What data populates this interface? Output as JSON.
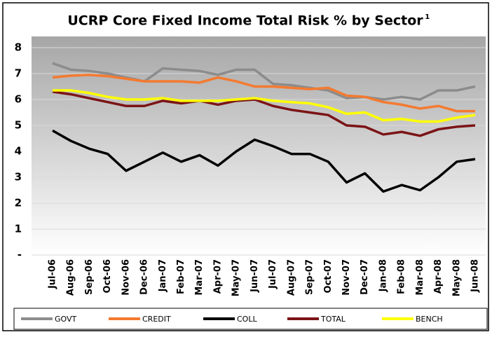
{
  "chart_data": {
    "type": "line",
    "title": "UCRP Core Fixed Income Total Risk % by Sector",
    "title_footnote": "1",
    "categories": [
      "Jul-06",
      "Aug-06",
      "Sep-06",
      "Oct-06",
      "Nov-06",
      "Dec-06",
      "Jan-07",
      "Feb-07",
      "Mar-07",
      "Apr-07",
      "May-07",
      "Jun-07",
      "Jul-07",
      "Aug-07",
      "Sep-07",
      "Oct-07",
      "Nov-07",
      "Dec-07",
      "Jan-08",
      "Feb-08",
      "Mar-08",
      "Apr-08",
      "May-08",
      "Jun-08"
    ],
    "series": [
      {
        "name": "GOVT",
        "color": "#8c8c8c",
        "values": [
          7.4,
          7.15,
          7.1,
          7.0,
          6.85,
          6.7,
          7.2,
          7.15,
          7.1,
          6.95,
          7.15,
          7.15,
          6.6,
          6.55,
          6.45,
          6.35,
          6.05,
          6.1,
          6.0,
          6.1,
          6.0,
          6.35,
          6.35,
          6.5
        ]
      },
      {
        "name": "CREDIT",
        "color": "#f47a30",
        "values": [
          6.85,
          6.92,
          6.95,
          6.9,
          6.8,
          6.7,
          6.7,
          6.7,
          6.65,
          6.85,
          6.7,
          6.5,
          6.5,
          6.45,
          6.4,
          6.45,
          6.15,
          6.1,
          5.9,
          5.8,
          5.65,
          5.75,
          5.55,
          5.55
        ]
      },
      {
        "name": "COLL",
        "color": "#000000",
        "values": [
          4.8,
          4.4,
          4.1,
          3.9,
          3.25,
          3.6,
          3.95,
          3.6,
          3.85,
          3.45,
          4.0,
          4.45,
          4.2,
          3.9,
          3.9,
          3.6,
          2.8,
          3.15,
          2.45,
          2.7,
          2.5,
          3.0,
          3.6,
          3.7
        ]
      },
      {
        "name": "TOTAL",
        "color": "#7b1416",
        "values": [
          6.3,
          6.2,
          6.05,
          5.9,
          5.75,
          5.75,
          5.95,
          5.85,
          5.95,
          5.8,
          5.95,
          6.0,
          5.75,
          5.6,
          5.5,
          5.4,
          5.0,
          4.95,
          4.65,
          4.75,
          4.6,
          4.85,
          4.95,
          5.0
        ]
      },
      {
        "name": "BENCH",
        "color": "#ffff00",
        "values": [
          6.35,
          6.35,
          6.25,
          6.1,
          6.0,
          6.0,
          6.05,
          5.95,
          5.95,
          5.95,
          6.0,
          6.05,
          5.95,
          5.9,
          5.85,
          5.7,
          5.45,
          5.5,
          5.2,
          5.25,
          5.15,
          5.15,
          5.3,
          5.4
        ]
      }
    ],
    "ylim": [
      0,
      8
    ],
    "yticks": [
      {
        "value": 0,
        "label": "-"
      },
      1,
      2,
      3,
      4,
      5,
      6,
      7,
      8
    ],
    "grid": true
  }
}
